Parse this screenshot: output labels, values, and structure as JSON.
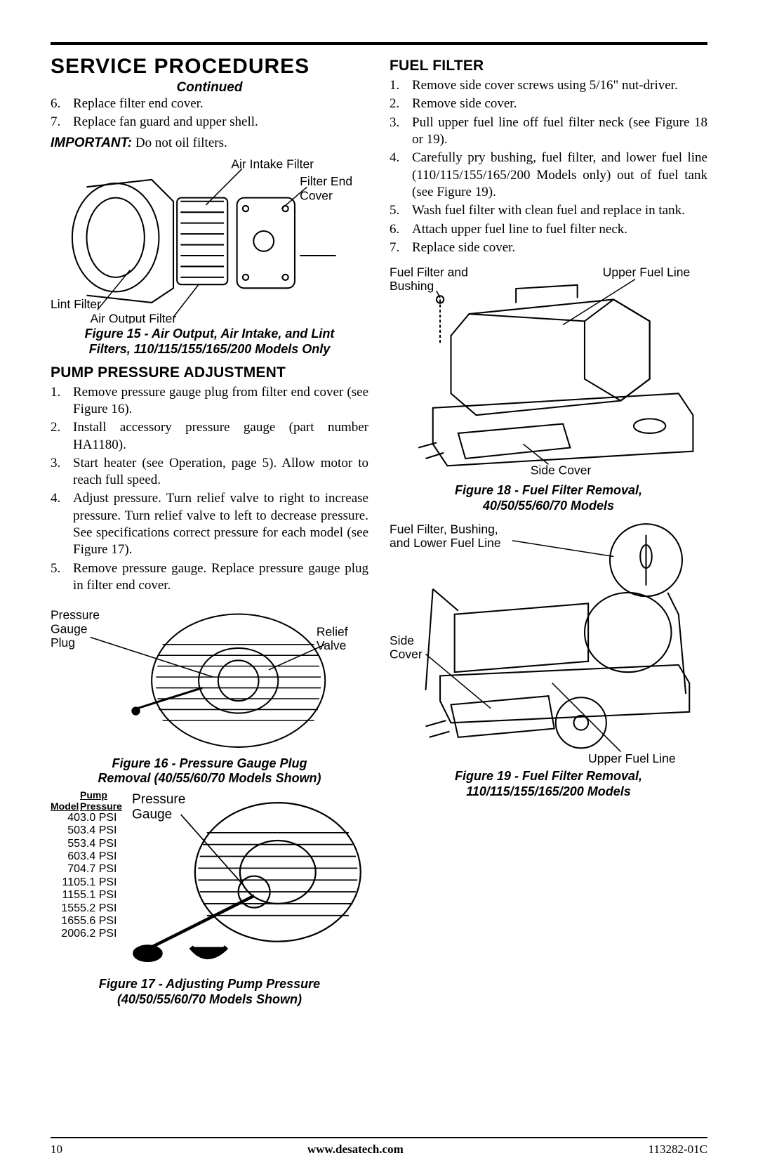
{
  "header": {
    "title": "SERVICE PROCEDURES",
    "continued": "Continued"
  },
  "left": {
    "list1": [
      {
        "n": "6.",
        "t": "Replace filter end cover."
      },
      {
        "n": "7.",
        "t": "Replace fan guard and upper shell."
      }
    ],
    "important_label": "IMPORTANT:",
    "important_text": " Do not oil filters.",
    "fig15_labels": {
      "air_intake": "Air Intake Filter",
      "filter_end": "Filter End",
      "cover": "Cover",
      "lint": "Lint Filter",
      "air_output": "Air Output Filter"
    },
    "fig15_caption_l1": "Figure 15 - Air Output, Air Intake, and Lint",
    "fig15_caption_l2": "Filters, 110/115/155/165/200 Models Only",
    "pump_section": "PUMP PRESSURE ADJUSTMENT",
    "pump_steps": [
      {
        "n": "1.",
        "t": "Remove pressure gauge plug from filter end cover (see Figure 16)."
      },
      {
        "n": "2.",
        "t": "Install accessory pressure gauge (part number HA1180)."
      },
      {
        "n": "3.",
        "t": "Start heater (see Operation, page 5). Allow motor to reach full speed."
      },
      {
        "n": "4.",
        "t": "Adjust pressure. Turn relief valve to right to increase pressure. Turn relief valve to left to decrease pressure. See specifications correct pressure for each model (see Figure 17)."
      },
      {
        "n": "5.",
        "t": "Remove pressure gauge. Replace pressure gauge plug in filter end cover."
      }
    ],
    "fig16_labels": {
      "pressure": "Pressure",
      "gauge": "Gauge",
      "plug": "Plug",
      "relief": "Relief",
      "valve": "Valve"
    },
    "fig16_caption_l1": "Figure 16 - Pressure Gauge Plug",
    "fig16_caption_l2": "Removal (40/55/60/70 Models Shown)",
    "pump_table": {
      "hdr_model": "Model",
      "hdr_pump": "Pump",
      "hdr_pressure": "Pressure",
      "rows": [
        {
          "m": "40",
          "p": "3.0 PSI"
        },
        {
          "m": "50",
          "p": "3.4 PSI"
        },
        {
          "m": "55",
          "p": "3.4 PSI"
        },
        {
          "m": "60",
          "p": "3.4 PSI"
        },
        {
          "m": "70",
          "p": "4.7 PSI"
        },
        {
          "m": "110",
          "p": "5.1 PSI"
        },
        {
          "m": "115",
          "p": "5.1 PSI"
        },
        {
          "m": "155",
          "p": "5.2 PSI"
        },
        {
          "m": "165",
          "p": "5.6 PSI"
        },
        {
          "m": "200",
          "p": "6.2 PSI"
        }
      ]
    },
    "fig17_labels": {
      "pressure": "Pressure",
      "gauge": "Gauge"
    },
    "fig17_caption_l1": "Figure 17 - Adjusting Pump Pressure",
    "fig17_caption_l2": "(40/50/55/60/70 Models Shown)"
  },
  "right": {
    "fuel_section": "FUEL FILTER",
    "fuel_steps": [
      {
        "n": "1.",
        "t": "Remove side cover screws using 5/16\" nut-driver."
      },
      {
        "n": "2.",
        "t": "Remove side cover."
      },
      {
        "n": "3.",
        "t": "Pull upper fuel line off fuel filter neck (see Figure 18 or 19)."
      },
      {
        "n": "4.",
        "t": "Carefully pry bushing, fuel filter, and lower fuel line (110/115/155/165/200 Models only) out of fuel tank (see Figure 19)."
      },
      {
        "n": "5.",
        "t": "Wash fuel filter with clean fuel and replace in tank."
      },
      {
        "n": "6.",
        "t": "Attach upper fuel line to fuel filter neck."
      },
      {
        "n": "7.",
        "t": "Replace side cover."
      }
    ],
    "fig18_labels": {
      "fuel_filter_bushing_l1": "Fuel Filter and",
      "fuel_filter_bushing_l2": "Bushing",
      "upper_fuel": "Upper Fuel Line",
      "side_cover": "Side Cover"
    },
    "fig18_caption_l1": "Figure 18 - Fuel Filter Removal,",
    "fig18_caption_l2": "40/50/55/60/70 Models",
    "fig19_labels": {
      "ff_l1": "Fuel Filter, Bushing,",
      "ff_l2": "and Lower Fuel Line",
      "side": "Side",
      "cover": "Cover",
      "upper_fuel": "Upper Fuel Line"
    },
    "fig19_caption_l1": "Figure 19 - Fuel Filter Removal,",
    "fig19_caption_l2": "110/115/155/165/200 Models"
  },
  "footer": {
    "page": "10",
    "url": "www.desatech.com",
    "doc": "113282-01C"
  },
  "colors": {
    "text": "#000000",
    "bg": "#ffffff",
    "rule": "#000000"
  }
}
